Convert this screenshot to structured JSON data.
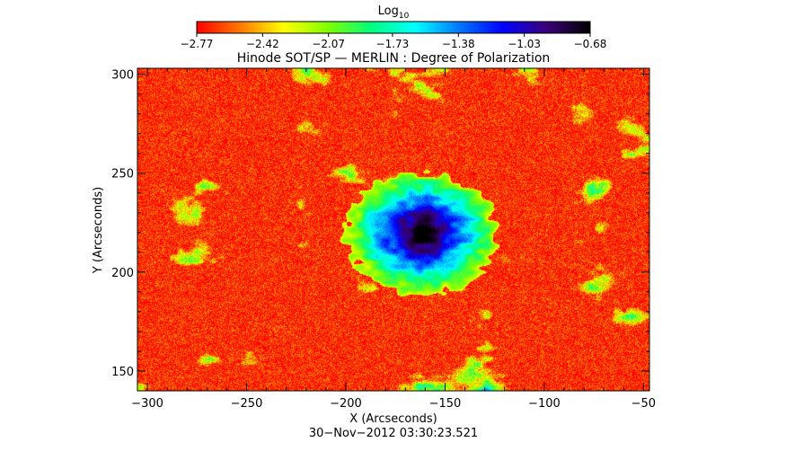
{
  "chart_data": {
    "type": "heatmap",
    "title": "Hinode SOT/SP — MERLIN : Degree of Polarization",
    "xlabel": "X (Arcseconds)",
    "ylabel": "Y (Arcseconds)",
    "xlim": [
      -305,
      -47
    ],
    "ylim": [
      140,
      303
    ],
    "x_ticks": [
      -300,
      -250,
      -200,
      -150,
      -100,
      -50
    ],
    "x_tick_labels": [
      "−300",
      "−250",
      "−200",
      "−150",
      "−100",
      "−50"
    ],
    "y_ticks": [
      150,
      200,
      250,
      300
    ],
    "y_tick_labels": [
      "150",
      "200",
      "250",
      "300"
    ],
    "timestamp": "30−Nov−2012 03:30:23.521",
    "colorbar": {
      "label_base": "Log",
      "label_sub": "10",
      "min": -2.77,
      "max": -0.68,
      "tick_values": [
        -2.77,
        -2.42,
        -2.07,
        -1.73,
        -1.38,
        -1.03,
        -0.68
      ],
      "tick_labels": [
        "−2.77",
        "−2.42",
        "−2.07",
        "−1.73",
        "−1.38",
        "−1.03",
        "−0.68"
      ],
      "colors": [
        "#ff0000",
        "#ff7a00",
        "#ffff00",
        "#7fff00",
        "#00ff7f",
        "#00ffff",
        "#0078ff",
        "#0000ff",
        "#3a0078",
        "#000000"
      ]
    },
    "features": {
      "sunspot": {
        "x": -162,
        "y": 220,
        "value": -0.8
      },
      "background_value": -2.7
    }
  }
}
